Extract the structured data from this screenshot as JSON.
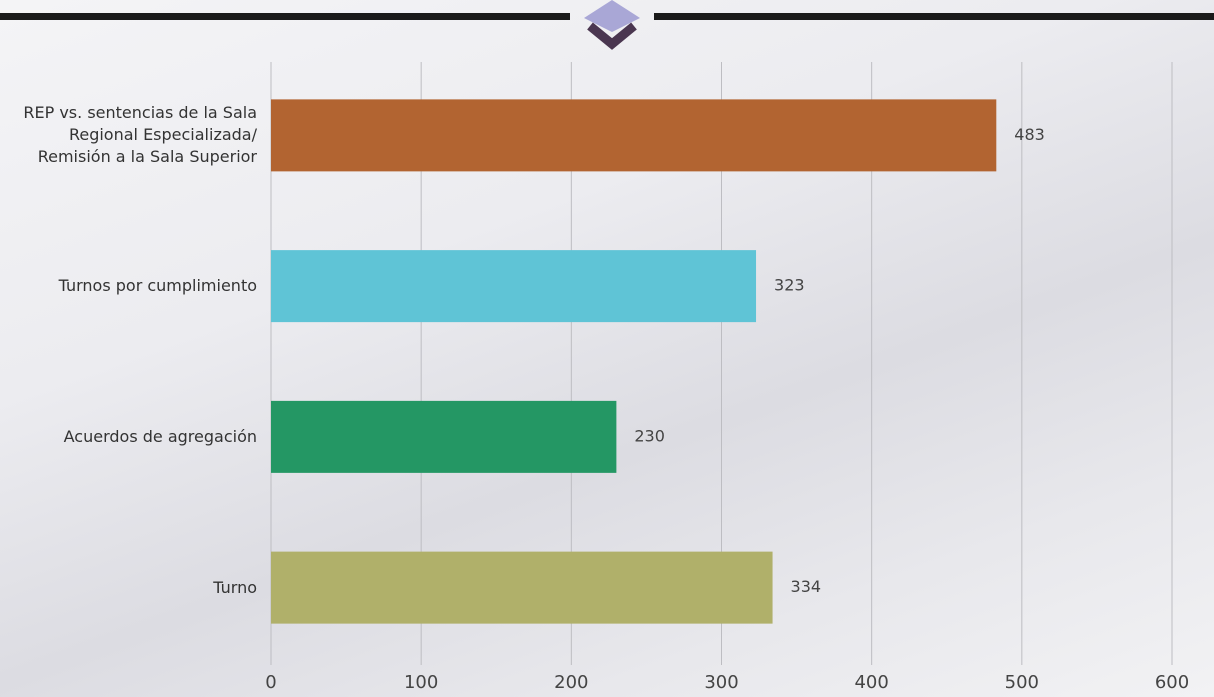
{
  "chart_data": {
    "type": "bar",
    "orientation": "horizontal",
    "categories": [
      "REP vs. sentencias de la Sala Regional Especializada/ Remisión a la Sala Superior",
      "Turnos por cumplimiento",
      "Acuerdos de agregación",
      "Turno"
    ],
    "values": [
      483,
      323,
      230,
      334
    ],
    "colors": [
      "#b26431",
      "#5fc4d6",
      "#249764",
      "#b0b06a"
    ],
    "xlim": [
      0,
      600
    ],
    "xticks": [
      0,
      100,
      200,
      300,
      400,
      500,
      600
    ],
    "grid": true
  }
}
